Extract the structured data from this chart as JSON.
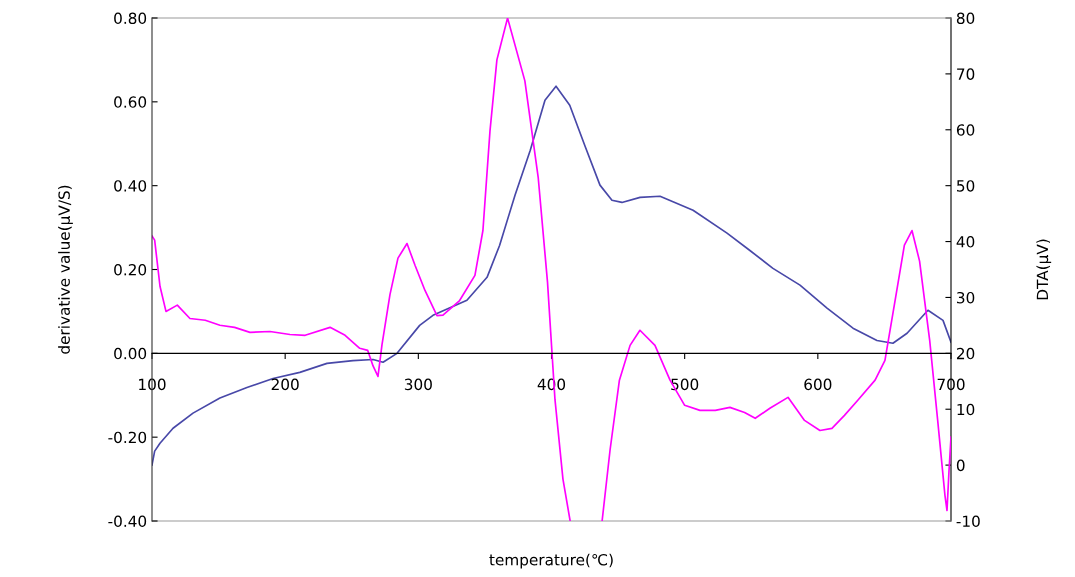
{
  "chart_data": {
    "type": "line",
    "xlabel": "temperature(℃)",
    "ylabel": "derivative value(μV/S)",
    "y2label": "DTA(μV)",
    "xlim": [
      100,
      700
    ],
    "xticks": [
      100,
      200,
      300,
      400,
      500,
      600,
      700
    ],
    "ylim": [
      -0.4,
      0.8
    ],
    "yticks": [
      {
        "value": -0.4,
        "label": "-0.40"
      },
      {
        "value": -0.2,
        "label": "-0.20"
      },
      {
        "value": 0,
        "label": "0.00"
      },
      {
        "value": 0.2,
        "label": "0.20"
      },
      {
        "value": 0.4,
        "label": "0.40"
      },
      {
        "value": 0.6,
        "label": "0.60"
      },
      {
        "value": 0.8,
        "label": "0.80"
      }
    ],
    "y2lim": [
      -10,
      80
    ],
    "y2ticks": [
      -10,
      0,
      10,
      20,
      30,
      40,
      50,
      60,
      70,
      80
    ],
    "grid": false,
    "legend": false,
    "series": [
      {
        "color": "#ff00ff",
        "x": [
          100,
          102,
          106,
          110.5,
          119,
          128.5,
          140,
          151,
          162,
          173.6,
          188.6,
          203.6,
          215,
          233.7,
          245,
          256,
          262,
          266,
          269.7,
          272.7,
          278.7,
          284.7,
          291.5,
          297.5,
          305,
          314,
          318.5,
          331,
          342.5,
          348.5,
          353.8,
          359,
          367,
          380,
          390,
          397,
          402.6,
          408.6,
          414,
          426,
          438,
          444,
          451,
          459,
          466.4,
          477.7,
          489,
          500,
          511.5,
          523,
          534,
          545,
          553,
          564,
          577.6,
          590,
          601.6,
          610.6,
          620,
          630,
          643,
          650.4,
          658,
          665,
          670.7,
          676.4,
          684,
          690,
          695.5,
          697,
          698.5,
          700
        ],
        "values": [
          0.28,
          0.27,
          0.16,
          0.1,
          0.115,
          0.083,
          0.079,
          0.067,
          0.062,
          0.05,
          0.052,
          0.045,
          0.043,
          0.062,
          0.043,
          0.012,
          0.007,
          -0.03,
          -0.055,
          0.02,
          0.14,
          0.227,
          0.262,
          0.21,
          0.15,
          0.09,
          0.091,
          0.126,
          0.186,
          0.293,
          0.53,
          0.7,
          0.8,
          0.65,
          0.42,
          0.17,
          -0.11,
          -0.3,
          -0.4,
          null,
          -0.4,
          -0.23,
          -0.064,
          0.019,
          0.055,
          0.019,
          -0.064,
          -0.124,
          -0.136,
          -0.136,
          -0.129,
          -0.141,
          -0.155,
          -0.131,
          -0.105,
          -0.16,
          -0.184,
          -0.179,
          -0.148,
          -0.112,
          -0.064,
          -0.017,
          0.126,
          0.258,
          0.293,
          0.22,
          0.031,
          -0.16,
          -0.34,
          -0.375,
          -0.28,
          -0.2
        ]
      },
      {
        "color": "#4848a8",
        "axis": "y2",
        "x": [
          100,
          102,
          106,
          115.8,
          130.8,
          151,
          171.3,
          190.9,
          211,
          231.4,
          250.9,
          266,
          273.5,
          284,
          301,
          311,
          336.5,
          351.6,
          361,
          372.6,
          384,
          395.1,
          403.4,
          413.7,
          425,
          436.4,
          445.4,
          452.9,
          466.5,
          481.5,
          506.3,
          531.8,
          549,
          566.3,
          586.6,
          606.9,
          626.4,
          644.4,
          656.4,
          667,
          682.7,
          694,
          700
        ],
        "values": [
          0,
          2.5,
          3.9,
          6.6,
          9.3,
          12,
          13.9,
          15.5,
          16.6,
          18.2,
          18.7,
          18.9,
          18.4,
          20,
          25,
          26.8,
          29.5,
          33.6,
          39.3,
          48.3,
          56.3,
          65.3,
          67.8,
          64.4,
          57.2,
          50.1,
          47.4,
          47,
          47.9,
          48.1,
          45.6,
          41.5,
          38.4,
          35.2,
          32.2,
          28.1,
          24.5,
          22.3,
          21.8,
          23.6,
          27.7,
          25.9,
          22
        ]
      }
    ]
  }
}
